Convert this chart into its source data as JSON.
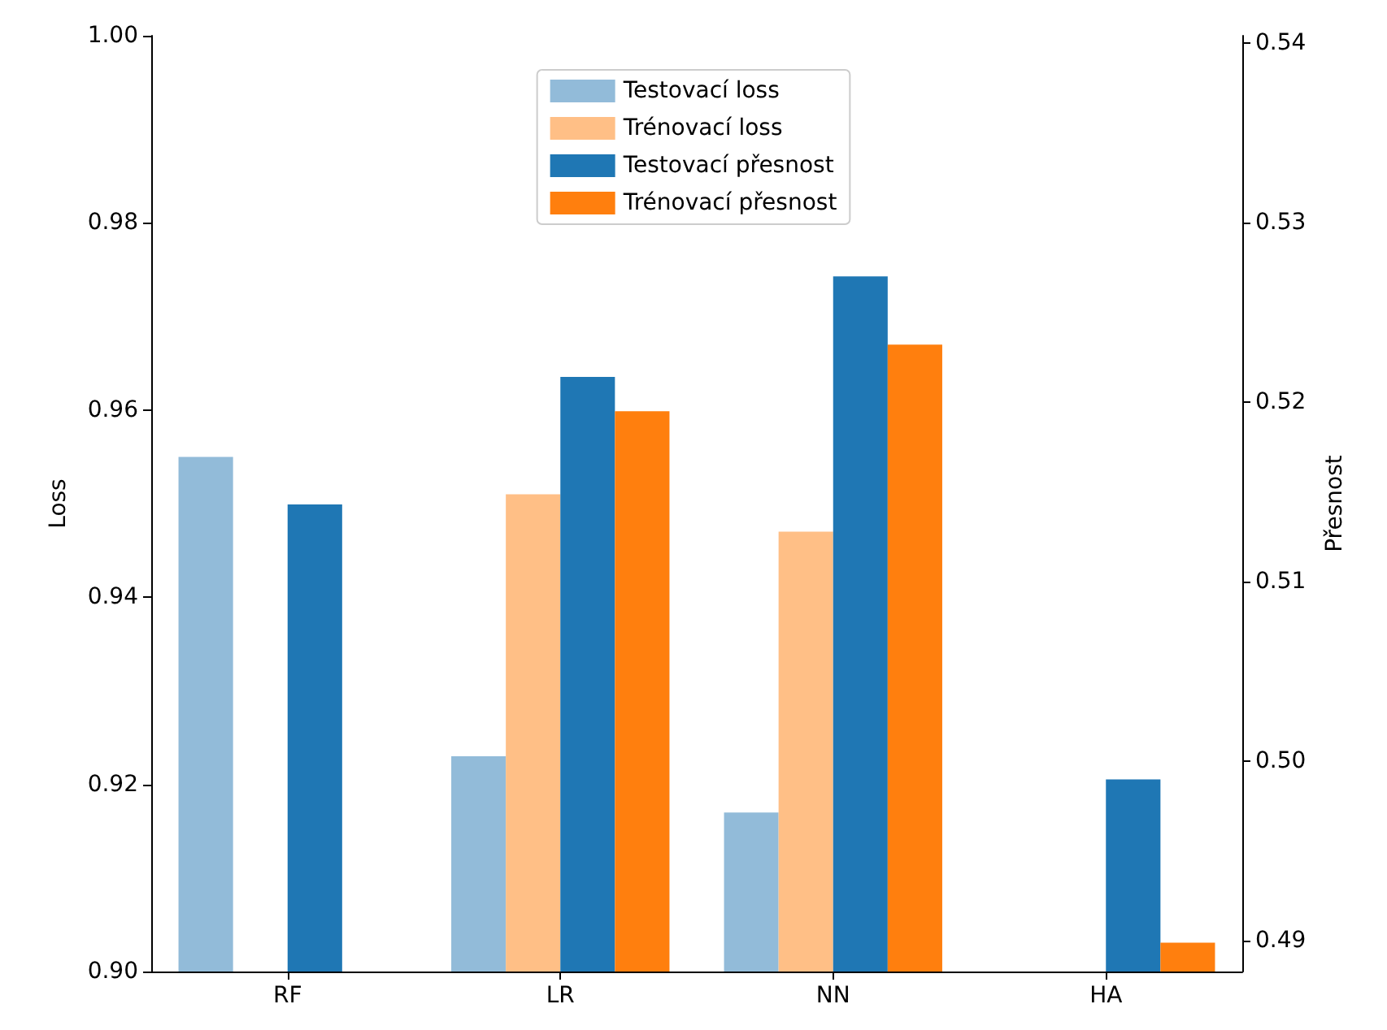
{
  "chart_data": {
    "type": "bar",
    "categories": [
      "RF",
      "LR",
      "NN",
      "HA"
    ],
    "ylabel": "Loss",
    "y2label": "Přesnost",
    "ylim": [
      0.9,
      1.0
    ],
    "yticks": [
      {
        "value": 0.9,
        "label": "0.90"
      },
      0.92,
      0.94,
      0.96,
      0.98,
      {
        "value": 1.0,
        "label": "1.00"
      }
    ],
    "y2lim": [
      0.4883,
      0.5404
    ],
    "y2ticks": [
      0.49,
      {
        "value": 0.5,
        "label": "0.50"
      },
      0.51,
      0.52,
      0.53,
      0.54
    ],
    "series": [
      {
        "name": "Testovací loss",
        "color": "#92bbd9",
        "values": [
          0.955,
          0.923,
          0.917,
          null
        ]
      },
      {
        "name": "Trénovací loss",
        "color": "#ffbf86",
        "values": [
          null,
          0.951,
          0.947,
          null
        ]
      },
      {
        "name": "Testovací přesnost",
        "color": "#1f77b4",
        "axis": "y2",
        "values": [
          0.5143,
          0.5214,
          0.527,
          0.499
        ]
      },
      {
        "name": "Trénovací přesnost",
        "color": "#ff7f0e",
        "axis": "y2",
        "values": [
          null,
          0.5195,
          0.5232,
          0.4899
        ]
      }
    ],
    "grid": false,
    "legend": "top"
  }
}
